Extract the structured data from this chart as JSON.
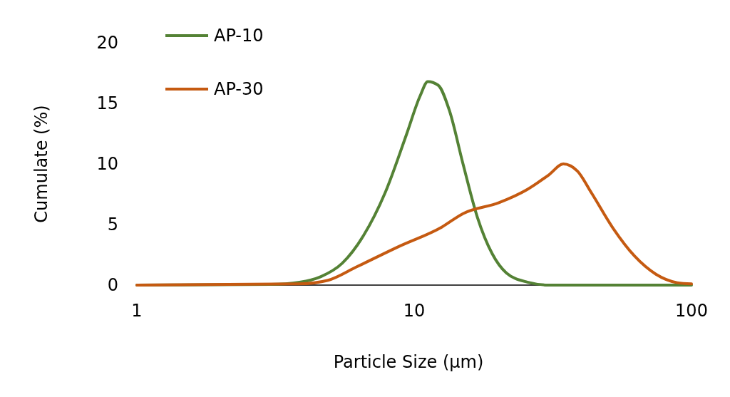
{
  "chart_data": {
    "type": "line",
    "xlabel": "Particle Size (µm)",
    "ylabel": "Cumulate (%)",
    "log": "x",
    "xlim": [
      1,
      100
    ],
    "xticks": [
      1,
      10,
      100
    ],
    "ylim": [
      0,
      20
    ],
    "yticks": [
      0,
      5,
      10,
      15,
      20
    ],
    "grid": false,
    "legend": "top left",
    "marker": "none",
    "line_style": "solid",
    "series": [
      {
        "name": "AP-10",
        "color": "#548235",
        "x": [
          1,
          3.04,
          3.86,
          4.61,
          5.5,
          6.57,
          7.85,
          9.37,
          10.5,
          11.2,
          12.2,
          13.4,
          15,
          16.9,
          19.1,
          21.5,
          25.6,
          30.6,
          100
        ],
        "values": [
          0,
          0.06,
          0.24,
          0.7,
          1.8,
          4.1,
          7.6,
          12.4,
          15.6,
          16.8,
          16.5,
          14.4,
          10,
          5.6,
          2.6,
          1,
          0.24,
          0,
          0
        ]
      },
      {
        "name": "AP-30",
        "color": "#c55a11",
        "x": [
          1,
          3.86,
          4.89,
          6.19,
          8.83,
          12.6,
          15,
          20.2,
          25.6,
          30.6,
          34.5,
          38.8,
          43.6,
          52.1,
          62.3,
          74.4,
          88.8,
          100
        ],
        "values": [
          0,
          0.1,
          0.4,
          1.5,
          3.2,
          4.8,
          5.9,
          6.8,
          7.9,
          9.1,
          10,
          9.4,
          7.6,
          4.7,
          2.4,
          0.9,
          0.2,
          0.1
        ]
      }
    ]
  }
}
